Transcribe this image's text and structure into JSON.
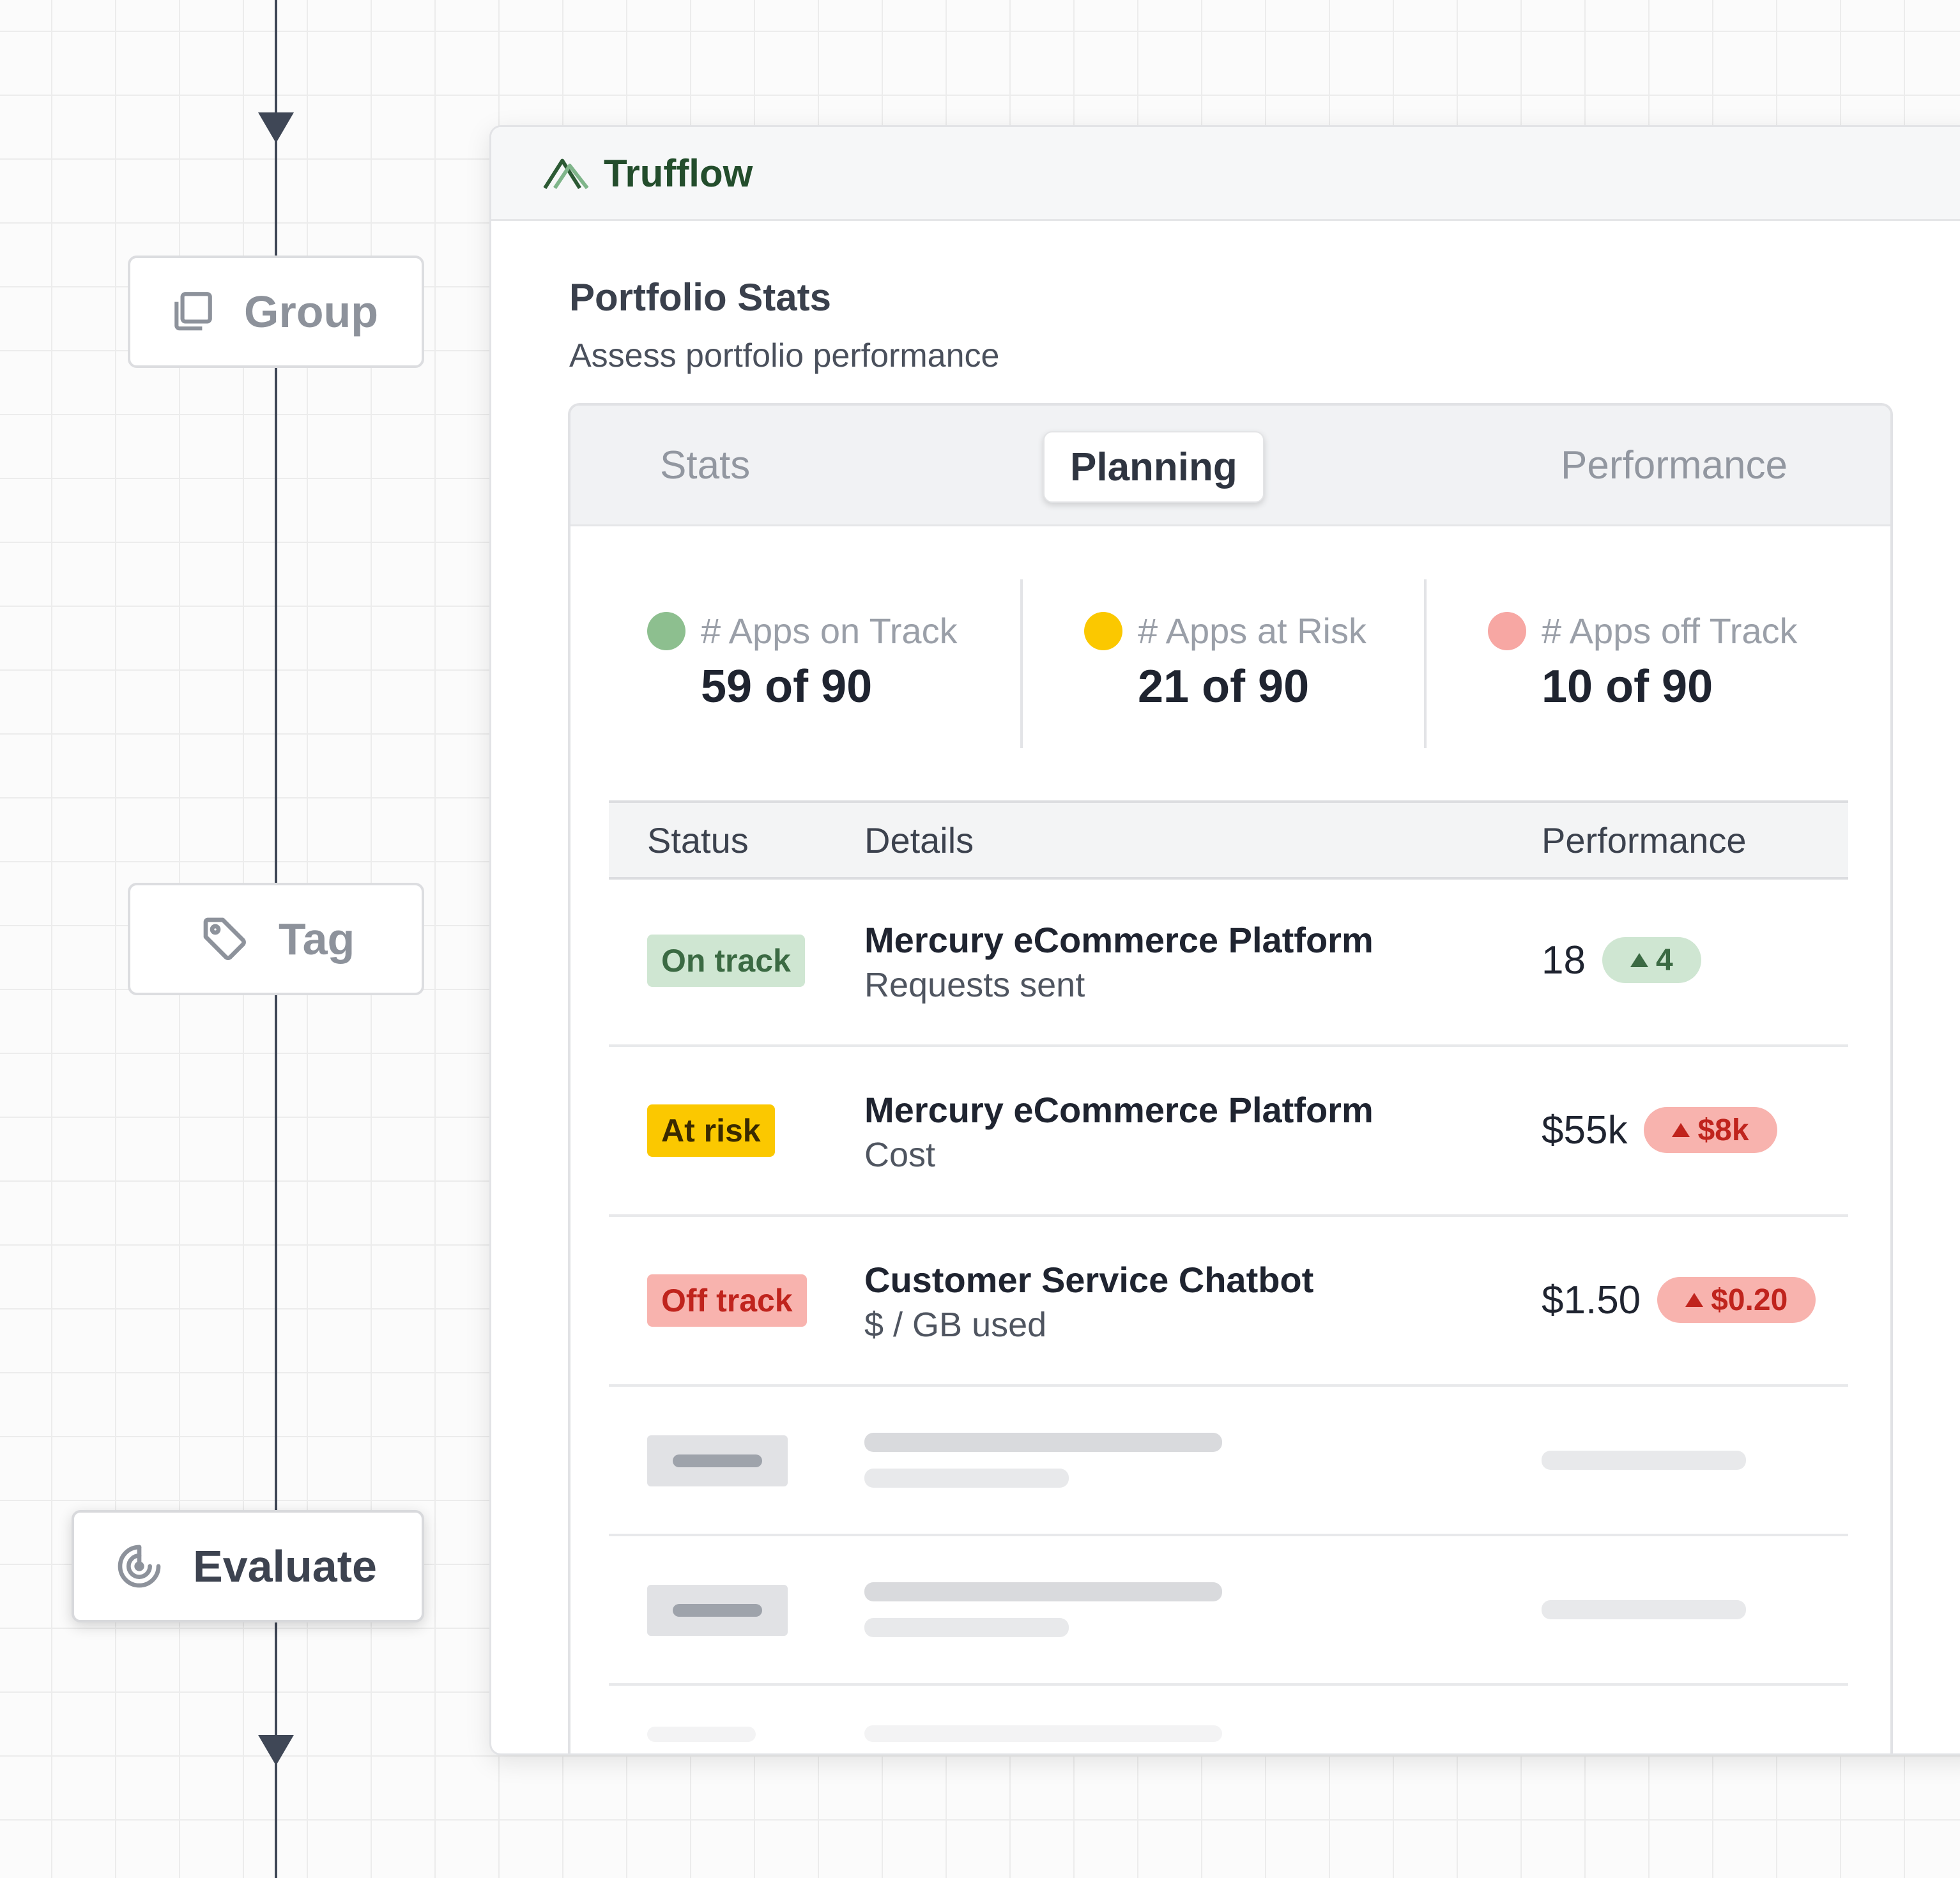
{
  "flow": {
    "nodes": {
      "group": "Group",
      "tag": "Tag",
      "evaluate": "Evaluate"
    }
  },
  "app": {
    "brand": "Trufflow",
    "brand_color": "#2c5a34"
  },
  "section": {
    "title": "Portfolio Stats",
    "subtitle": "Assess portfolio performance"
  },
  "tabs": [
    {
      "label": "Stats",
      "selected": false
    },
    {
      "label": "Planning",
      "selected": true
    },
    {
      "label": "Performance",
      "selected": false
    }
  ],
  "kpis": [
    {
      "label": "# Apps on Track",
      "value": "59 of 90",
      "color": "#8dbf8f"
    },
    {
      "label": "# Apps at Risk",
      "value": "21 of 90",
      "color": "#fbc800"
    },
    {
      "label": "# Apps off Track",
      "value": "10 of 90",
      "color": "#f7a7a3"
    }
  ],
  "table": {
    "headers": {
      "status": "Status",
      "details": "Details",
      "performance": "Performance"
    },
    "rows": [
      {
        "status": "On track",
        "title": "Mercury eCommerce Platform",
        "metric": "Requests sent",
        "value": "18",
        "delta": "4"
      },
      {
        "status": "At risk",
        "title": "Mercury eCommerce Platform",
        "metric": "Cost",
        "value": "$55k",
        "delta": "$8k"
      },
      {
        "status": "Off track",
        "title": "Customer Service Chatbot",
        "metric": "$ / GB used",
        "value": "$1.50",
        "delta": "$0.20"
      }
    ]
  },
  "colors": {
    "on_track_bg": "#cfe6d2",
    "on_track_text": "#3b6a43",
    "at_risk_bg": "#fbc800",
    "at_risk_text": "#3a2a00",
    "off_track_bg": "#f8b3ae",
    "off_track_text": "#c0241d"
  }
}
